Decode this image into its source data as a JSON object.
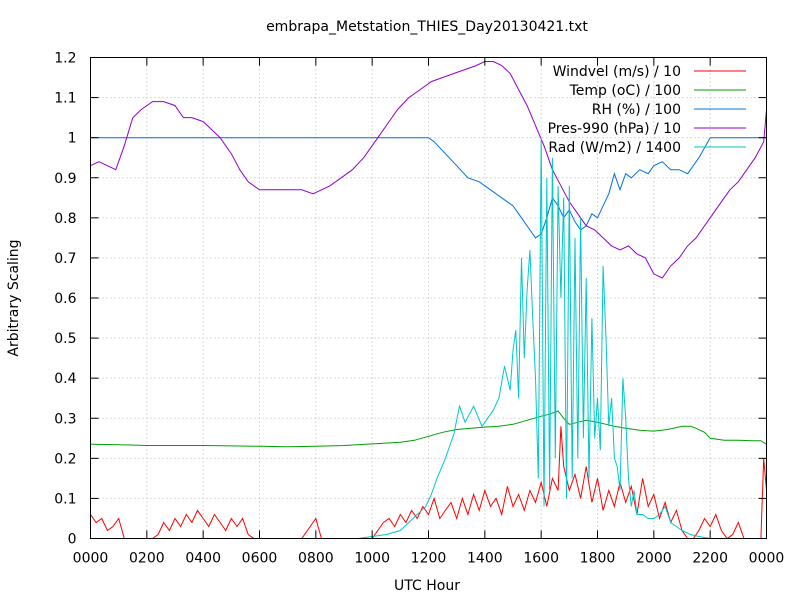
{
  "chart_data": {
    "type": "line",
    "title": "embrapa_Metstation_THIES_Day20130421.txt",
    "xlabel": "UTC Hour",
    "ylabel": "Arbitrary Scaling",
    "xlim": [
      0,
      24
    ],
    "ylim": [
      0,
      1.2
    ],
    "grid": true,
    "legend_position": "top-right",
    "x_ticks": [
      {
        "value": 0,
        "label": "0000"
      },
      {
        "value": 2,
        "label": "0200"
      },
      {
        "value": 4,
        "label": "0400"
      },
      {
        "value": 6,
        "label": "0600"
      },
      {
        "value": 8,
        "label": "0800"
      },
      {
        "value": 10,
        "label": "1000"
      },
      {
        "value": 12,
        "label": "1200"
      },
      {
        "value": 14,
        "label": "1400"
      },
      {
        "value": 16,
        "label": "1600"
      },
      {
        "value": 18,
        "label": "1800"
      },
      {
        "value": 20,
        "label": "2000"
      },
      {
        "value": 22,
        "label": "2200"
      },
      {
        "value": 24,
        "label": "0000"
      }
    ],
    "y_ticks": [
      {
        "value": 0,
        "label": "0"
      },
      {
        "value": 0.1,
        "label": "0.1"
      },
      {
        "value": 0.2,
        "label": "0.2"
      },
      {
        "value": 0.3,
        "label": "0.3"
      },
      {
        "value": 0.4,
        "label": "0.4"
      },
      {
        "value": 0.5,
        "label": "0.5"
      },
      {
        "value": 0.6,
        "label": "0.6"
      },
      {
        "value": 0.7,
        "label": "0.7"
      },
      {
        "value": 0.8,
        "label": "0.8"
      },
      {
        "value": 0.9,
        "label": "0.9"
      },
      {
        "value": 1,
        "label": "1"
      },
      {
        "value": 1.1,
        "label": "1.1"
      },
      {
        "value": 1.2,
        "label": "1.2"
      }
    ],
    "series": [
      {
        "name": "Windvel (m/s) / 10",
        "color": "#ff0000",
        "x": [
          0,
          0.2,
          0.4,
          0.6,
          0.8,
          1.0,
          1.2,
          1.4,
          1.6,
          1.8,
          2.0,
          2.2,
          2.4,
          2.6,
          2.8,
          3.0,
          3.2,
          3.4,
          3.6,
          3.8,
          4.0,
          4.2,
          4.4,
          4.6,
          4.8,
          5.0,
          5.2,
          5.4,
          5.6,
          5.8,
          6.0,
          6.5,
          7.0,
          7.5,
          7.8,
          8.0,
          8.2,
          8.5,
          9.0,
          9.5,
          10.0,
          10.2,
          10.4,
          10.6,
          10.8,
          11.0,
          11.2,
          11.4,
          11.6,
          11.8,
          12.0,
          12.2,
          12.4,
          12.6,
          12.8,
          13.0,
          13.2,
          13.4,
          13.6,
          13.8,
          14.0,
          14.2,
          14.4,
          14.6,
          14.8,
          15.0,
          15.2,
          15.4,
          15.6,
          15.8,
          16.0,
          16.2,
          16.4,
          16.6,
          16.7,
          16.8,
          17.0,
          17.2,
          17.4,
          17.6,
          17.8,
          18.0,
          18.2,
          18.4,
          18.6,
          18.8,
          19.0,
          19.2,
          19.4,
          19.6,
          19.8,
          20.0,
          20.2,
          20.4,
          20.6,
          20.8,
          21.0,
          21.2,
          21.4,
          21.6,
          21.8,
          22.0,
          22.2,
          22.4,
          22.6,
          22.8,
          23.0,
          23.2,
          23.4,
          23.6,
          23.7,
          23.8,
          23.9,
          24.0
        ],
        "values": [
          0.06,
          0.04,
          0.05,
          0.02,
          0.03,
          0.05,
          0.0,
          0.0,
          0.0,
          0.0,
          0.0,
          0.0,
          0.01,
          0.04,
          0.02,
          0.05,
          0.03,
          0.06,
          0.04,
          0.07,
          0.05,
          0.03,
          0.06,
          0.04,
          0.02,
          0.05,
          0.03,
          0.05,
          0.01,
          0.0,
          0.0,
          0.0,
          0.0,
          0.0,
          0.03,
          0.05,
          0.0,
          0.0,
          0.0,
          0.0,
          0.0,
          0.02,
          0.04,
          0.05,
          0.03,
          0.06,
          0.04,
          0.07,
          0.05,
          0.08,
          0.06,
          0.1,
          0.05,
          0.07,
          0.09,
          0.05,
          0.1,
          0.06,
          0.11,
          0.07,
          0.12,
          0.08,
          0.1,
          0.06,
          0.13,
          0.08,
          0.11,
          0.07,
          0.12,
          0.09,
          0.14,
          0.08,
          0.15,
          0.12,
          0.28,
          0.18,
          0.12,
          0.16,
          0.1,
          0.18,
          0.09,
          0.15,
          0.07,
          0.12,
          0.08,
          0.14,
          0.09,
          0.13,
          0.06,
          0.15,
          0.08,
          0.11,
          0.05,
          0.09,
          0.04,
          0.07,
          0.02,
          0.0,
          0.0,
          0.02,
          0.05,
          0.03,
          0.06,
          0.02,
          0.0,
          0.01,
          0.04,
          0.0,
          0.0,
          0.0,
          0.0,
          0.0,
          0.2,
          0.12
        ]
      },
      {
        "name": "Temp (oC) / 100",
        "color": "#00a000",
        "x": [
          0,
          1,
          2,
          3,
          4,
          5,
          6,
          7,
          8,
          9,
          10,
          11,
          11.5,
          12,
          12.5,
          13,
          13.5,
          14,
          14.5,
          15,
          15.5,
          16,
          16.3,
          16.6,
          16.8,
          17,
          17.3,
          17.6,
          18,
          18.3,
          18.6,
          19,
          19.5,
          20,
          20.5,
          21,
          21.3,
          21.5,
          21.8,
          22,
          22.5,
          23,
          23.5,
          23.8,
          24
        ],
        "values": [
          0.235,
          0.234,
          0.232,
          0.232,
          0.232,
          0.231,
          0.23,
          0.229,
          0.23,
          0.232,
          0.236,
          0.24,
          0.245,
          0.255,
          0.265,
          0.272,
          0.275,
          0.278,
          0.28,
          0.285,
          0.295,
          0.305,
          0.31,
          0.318,
          0.3,
          0.285,
          0.29,
          0.295,
          0.29,
          0.285,
          0.28,
          0.275,
          0.27,
          0.268,
          0.272,
          0.28,
          0.28,
          0.275,
          0.265,
          0.25,
          0.245,
          0.245,
          0.244,
          0.244,
          0.235
        ]
      },
      {
        "name": "RH (%) / 100",
        "color": "#0070e0",
        "x": [
          0,
          2,
          4,
          6,
          8,
          10,
          12,
          12.2,
          12.6,
          13,
          13.4,
          13.8,
          14.2,
          14.6,
          15,
          15.3,
          15.6,
          15.8,
          16,
          16.2,
          16.4,
          16.6,
          16.8,
          17,
          17.2,
          17.4,
          17.6,
          17.8,
          18,
          18.2,
          18.4,
          18.6,
          18.8,
          19,
          19.2,
          19.5,
          19.8,
          20,
          20.3,
          20.6,
          20.9,
          21.2,
          21.4,
          21.6,
          22,
          23,
          24
        ],
        "values": [
          1.0,
          1.0,
          1.0,
          1.0,
          1.0,
          1.0,
          1.0,
          0.99,
          0.96,
          0.93,
          0.9,
          0.89,
          0.87,
          0.85,
          0.83,
          0.8,
          0.77,
          0.75,
          0.76,
          0.8,
          0.85,
          0.83,
          0.8,
          0.82,
          0.79,
          0.77,
          0.78,
          0.81,
          0.8,
          0.83,
          0.86,
          0.91,
          0.87,
          0.91,
          0.9,
          0.92,
          0.91,
          0.93,
          0.94,
          0.92,
          0.92,
          0.91,
          0.93,
          0.95,
          1.0,
          1.0,
          1.0
        ]
      },
      {
        "name": "Pres-990 (hPa) / 10",
        "color": "#9000d0",
        "x": [
          0,
          0.3,
          0.6,
          0.9,
          1.2,
          1.5,
          1.8,
          2.2,
          2.6,
          3.0,
          3.3,
          3.6,
          4.0,
          4.3,
          4.6,
          5.0,
          5.3,
          5.6,
          6.0,
          6.5,
          7.0,
          7.5,
          7.9,
          8.2,
          8.5,
          8.9,
          9.3,
          9.7,
          10.1,
          10.5,
          10.9,
          11.3,
          11.7,
          12.1,
          12.5,
          12.9,
          13.3,
          13.7,
          14.0,
          14.3,
          14.6,
          14.9,
          15.2,
          15.5,
          15.8,
          16.1,
          16.4,
          16.7,
          17.0,
          17.3,
          17.6,
          17.9,
          18.2,
          18.5,
          18.8,
          19.1,
          19.4,
          19.7,
          20.0,
          20.3,
          20.6,
          20.9,
          21.2,
          21.5,
          21.8,
          22.1,
          22.4,
          22.7,
          23.0,
          23.3,
          23.6,
          23.9,
          24.0
        ],
        "values": [
          0.93,
          0.94,
          0.93,
          0.92,
          0.98,
          1.05,
          1.07,
          1.09,
          1.09,
          1.08,
          1.05,
          1.05,
          1.04,
          1.02,
          1.0,
          0.96,
          0.92,
          0.89,
          0.87,
          0.87,
          0.87,
          0.87,
          0.86,
          0.87,
          0.88,
          0.9,
          0.92,
          0.95,
          0.99,
          1.03,
          1.07,
          1.1,
          1.12,
          1.14,
          1.15,
          1.16,
          1.17,
          1.18,
          1.19,
          1.19,
          1.18,
          1.16,
          1.12,
          1.08,
          1.03,
          0.98,
          0.92,
          0.88,
          0.84,
          0.81,
          0.78,
          0.77,
          0.75,
          0.73,
          0.72,
          0.73,
          0.71,
          0.7,
          0.66,
          0.65,
          0.68,
          0.7,
          0.73,
          0.75,
          0.78,
          0.81,
          0.84,
          0.87,
          0.89,
          0.92,
          0.95,
          0.99,
          1.07
        ]
      },
      {
        "name": "Rad (W/m2) / 1400",
        "color": "#00c8c8",
        "x": [
          0,
          2,
          4,
          6,
          8,
          9.5,
          10,
          10.5,
          11,
          11.3,
          11.6,
          11.9,
          12.1,
          12.3,
          12.6,
          12.9,
          13.1,
          13.3,
          13.6,
          13.9,
          14.1,
          14.3,
          14.5,
          14.7,
          14.9,
          15.0,
          15.1,
          15.2,
          15.3,
          15.4,
          15.5,
          15.6,
          15.7,
          15.8,
          15.9,
          16.0,
          16.1,
          16.2,
          16.3,
          16.4,
          16.5,
          16.6,
          16.7,
          16.8,
          16.9,
          17.0,
          17.1,
          17.2,
          17.3,
          17.4,
          17.5,
          17.6,
          17.7,
          17.8,
          17.9,
          18.0,
          18.1,
          18.2,
          18.3,
          18.4,
          18.5,
          18.6,
          18.7,
          18.8,
          18.9,
          19.0,
          19.1,
          19.2,
          19.3,
          19.4,
          19.6,
          19.8,
          20.0,
          20.2,
          20.4,
          20.6,
          20.8,
          21.0,
          21.3,
          21.6,
          22.0,
          24.0
        ],
        "values": [
          0.0,
          0.0,
          0.0,
          0.0,
          0.0,
          0.0,
          0.005,
          0.01,
          0.02,
          0.04,
          0.06,
          0.08,
          0.11,
          0.15,
          0.2,
          0.26,
          0.33,
          0.29,
          0.33,
          0.28,
          0.3,
          0.32,
          0.35,
          0.43,
          0.37,
          0.47,
          0.52,
          0.35,
          0.7,
          0.45,
          0.62,
          0.72,
          0.55,
          0.4,
          0.15,
          1.0,
          0.08,
          0.9,
          0.12,
          0.95,
          0.2,
          0.88,
          0.6,
          0.85,
          0.1,
          0.88,
          0.15,
          0.75,
          0.2,
          0.8,
          0.25,
          0.65,
          0.15,
          0.55,
          0.25,
          0.35,
          0.22,
          0.68,
          0.5,
          0.28,
          0.35,
          0.2,
          0.18,
          0.12,
          0.4,
          0.3,
          0.15,
          0.08,
          0.12,
          0.06,
          0.06,
          0.05,
          0.05,
          0.06,
          0.08,
          0.04,
          0.03,
          0.02,
          0.01,
          0.005,
          0.0,
          0.0
        ]
      }
    ]
  }
}
